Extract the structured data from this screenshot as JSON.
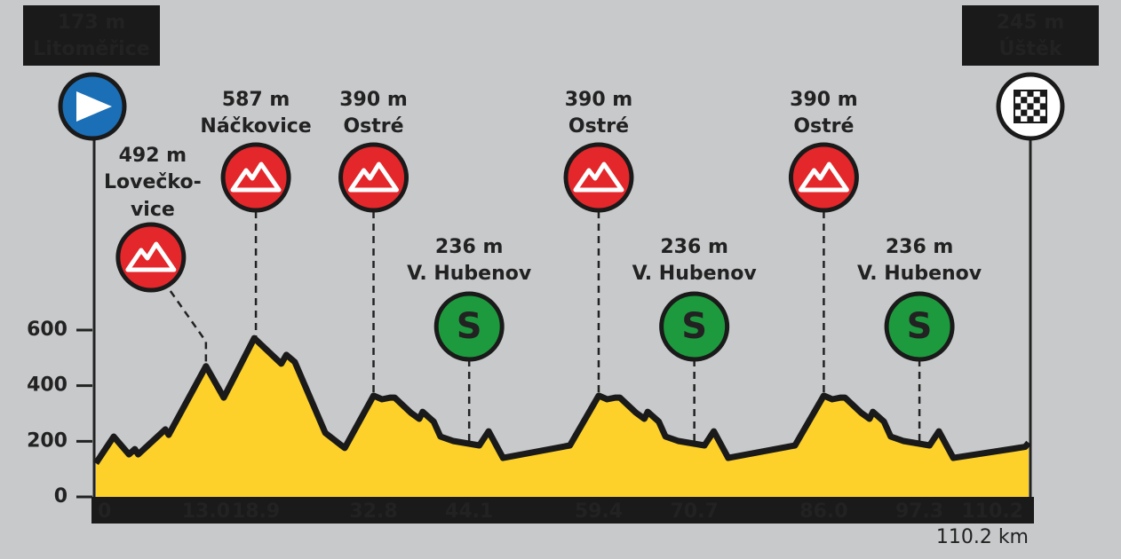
{
  "chart_data": {
    "type": "area",
    "x": [
      0,
      2.1,
      3.9,
      4.6,
      5.0,
      8.2,
      8.6,
      13.0,
      15.1,
      18.7,
      21.9,
      22.5,
      23.5,
      27.1,
      29.4,
      32.8,
      33.8,
      34.8,
      35.3,
      37.2,
      38.2,
      38.6,
      39.9,
      40.7,
      42.2,
      45.3,
      46.4,
      48.1,
      56.0,
      59.4,
      60.4,
      61.4,
      61.9,
      63.8,
      64.8,
      65.2,
      66.5,
      67.3,
      68.8,
      71.9,
      73.0,
      74.7,
      82.6,
      86.0,
      87.0,
      88.0,
      88.5,
      90.4,
      91.4,
      91.8,
      93.1,
      93.9,
      95.4,
      98.5,
      99.6,
      101.3,
      109.8,
      110.2
    ],
    "values": [
      121,
      217,
      153,
      172,
      153,
      243,
      223,
      470,
      357,
      571,
      479,
      511,
      485,
      230,
      176,
      364,
      351,
      357,
      357,
      303,
      281,
      306,
      271,
      217,
      201,
      185,
      236,
      140,
      185,
      364,
      351,
      357,
      357,
      303,
      281,
      306,
      271,
      217,
      201,
      185,
      236,
      140,
      185,
      364,
      351,
      357,
      357,
      303,
      281,
      306,
      271,
      217,
      201,
      185,
      236,
      140,
      180,
      195
    ],
    "color": "#fdd12a",
    "xlim": [
      0,
      110.2
    ],
    "xticks": [
      0,
      {
        "value": 13,
        "label": "13.0"
      },
      18.9,
      32.8,
      44.1,
      59.4,
      70.7,
      {
        "value": 86,
        "label": "86.0"
      },
      97.3,
      110.2
    ],
    "ylim": [
      0,
      600
    ],
    "yticks": [
      0,
      200,
      400,
      600
    ],
    "distance_label": "110.2 km",
    "start": {
      "elevation": "173 m",
      "name": "Litoměřice"
    },
    "finish": {
      "elevation": "245 m",
      "name": "Úštěk"
    },
    "markers": [
      {
        "kind": "climb",
        "x": 13,
        "elevation": "492 m",
        "name": [
          "Lovečko-",
          "vice"
        ]
      },
      {
        "kind": "climb",
        "x": 18.9,
        "elevation": "587 m",
        "name": [
          "Náčkovice"
        ]
      },
      {
        "kind": "climb",
        "x": 32.8,
        "elevation": "390 m",
        "name": [
          "Ostré"
        ]
      },
      {
        "kind": "sprint",
        "x": 44.1,
        "elevation": "236 m",
        "name": [
          "V. Hubenov"
        ],
        "symbol": "S"
      },
      {
        "kind": "climb",
        "x": 59.4,
        "elevation": "390 m",
        "name": [
          "Ostré"
        ]
      },
      {
        "kind": "sprint",
        "x": 70.7,
        "elevation": "236 m",
        "name": [
          "V. Hubenov"
        ],
        "symbol": "S"
      },
      {
        "kind": "climb",
        "x": 86,
        "elevation": "390 m",
        "name": [
          "Ostré"
        ]
      },
      {
        "kind": "sprint",
        "x": 97.3,
        "elevation": "236 m",
        "name": [
          "V. Hubenov"
        ],
        "symbol": "S"
      }
    ]
  }
}
